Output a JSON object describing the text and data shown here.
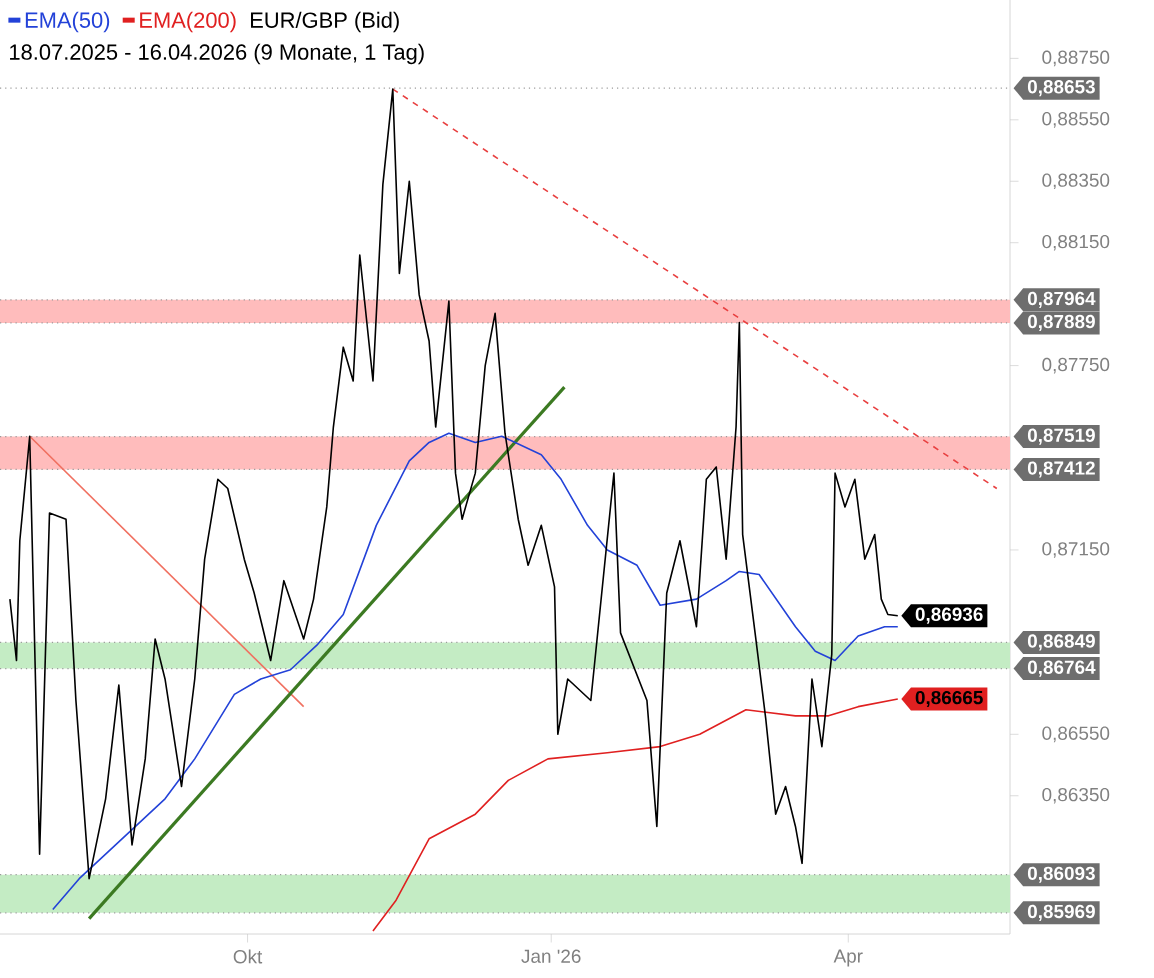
{
  "chart_data": {
    "type": "line",
    "title": "EUR/GBP (Bid)",
    "subtitle": "18.07.2025 - 16.04.2026  (9 Monate, 1 Tag)",
    "legend": "top left",
    "xlim": [
      "2025-07-18",
      "2026-05-20"
    ],
    "ylim": [
      0.859,
      0.8894
    ],
    "xticks": [
      {
        "value": "2025-10-01",
        "label": "Okt"
      },
      {
        "value": "2026-01-01",
        "label": "Jan '26"
      },
      {
        "value": "2026-04-01",
        "label": "Apr"
      }
    ],
    "yticks": [
      {
        "value": 0.8875,
        "label": "0,88750"
      },
      {
        "value": 0.8855,
        "label": "0,88550"
      },
      {
        "value": 0.8835,
        "label": "0,88350"
      },
      {
        "value": 0.8815,
        "label": "0,88150"
      },
      {
        "value": 0.8775,
        "label": "0,87750"
      },
      {
        "value": 0.8715,
        "label": "0,87150"
      },
      {
        "value": 0.8655,
        "label": "0,86550"
      },
      {
        "value": 0.8635,
        "label": "0,86350"
      }
    ],
    "bands": [
      {
        "axis": "y",
        "from": 0.87889,
        "to": 0.87964,
        "color": "#ffbcbc"
      },
      {
        "axis": "y",
        "from": 0.87412,
        "to": 0.87519,
        "color": "#ffbcbc"
      },
      {
        "axis": "y",
        "from": 0.86764,
        "to": 0.86849,
        "color": "#c4ecc4"
      },
      {
        "axis": "y",
        "from": 0.85969,
        "to": 0.86093,
        "color": "#c4ecc4"
      }
    ],
    "ref_lines": [
      {
        "axis": "y",
        "value": 0.88653,
        "label": "0,88653",
        "color": "#9a9a9a",
        "line_style": "dotted"
      },
      {
        "axis": "y",
        "value": 0.87964,
        "label": "0,87964",
        "color": "#9a9a9a",
        "line_style": "dotted"
      },
      {
        "axis": "y",
        "value": 0.87889,
        "label": "0,87889",
        "color": "#9a9a9a",
        "line_style": "dotted"
      },
      {
        "axis": "y",
        "value": 0.87519,
        "label": "0,87519",
        "color": "#9a9a9a",
        "line_style": "dotted"
      },
      {
        "axis": "y",
        "value": 0.87412,
        "label": "0,87412",
        "color": "#9a9a9a",
        "line_style": "dotted"
      },
      {
        "axis": "y",
        "value": 0.86849,
        "label": "0,86849",
        "color": "#9a9a9a",
        "line_style": "dotted"
      },
      {
        "axis": "y",
        "value": 0.86764,
        "label": "0,86764",
        "color": "#9a9a9a",
        "line_style": "dotted"
      },
      {
        "axis": "y",
        "value": 0.86093,
        "label": "0,86093",
        "color": "#9a9a9a",
        "line_style": "dotted"
      },
      {
        "axis": "y",
        "value": 0.85969,
        "label": "0,85969",
        "color": "#9a9a9a",
        "line_style": "dotted"
      }
    ],
    "series": [
      {
        "color": "#e84040",
        "line_style": "dashed",
        "x": [
          "2025-11-14",
          "2026-05-16"
        ],
        "values": [
          0.8865,
          0.8735
        ]
      },
      {
        "color": "#f07060",
        "line_style": "solid",
        "x": [
          "2025-07-27",
          "2025-10-18"
        ],
        "values": [
          0.8752,
          0.8664
        ]
      },
      {
        "color": "#3c7a22",
        "line_style": "solid",
        "x": [
          "2025-08-14",
          "2026-01-05"
        ],
        "values": [
          0.8595,
          0.8768
        ]
      },
      {
        "name": "EMA(50)",
        "color": "#2342d8",
        "line_style": "solid",
        "x": [
          "2025-08-03",
          "2025-08-11",
          "2025-08-19",
          "2025-09-06",
          "2025-09-15",
          "2025-09-27",
          "2025-10-05",
          "2025-10-14",
          "2025-10-22",
          "2025-10-30",
          "2025-11-09",
          "2025-11-19",
          "2025-11-25",
          "2025-12-01",
          "2025-12-09",
          "2025-12-17",
          "2025-12-29",
          "2026-01-04",
          "2026-01-12",
          "2026-01-18",
          "2026-01-27",
          "2026-02-03",
          "2026-02-14",
          "2026-02-23",
          "2026-02-27",
          "2026-03-05",
          "2026-03-16",
          "2026-03-22",
          "2026-03-28",
          "2026-04-04",
          "2026-04-12",
          "2026-04-16"
        ],
        "values": [
          0.8598,
          0.8608,
          0.8616,
          0.8634,
          0.8647,
          0.8668,
          0.8673,
          0.8676,
          0.8684,
          0.8694,
          0.8723,
          0.8744,
          0.875,
          0.8753,
          0.875,
          0.8752,
          0.8746,
          0.8738,
          0.8723,
          0.8715,
          0.871,
          0.8697,
          0.8699,
          0.8705,
          0.8708,
          0.8707,
          0.869,
          0.8682,
          0.8679,
          0.8687,
          0.869,
          0.869
        ]
      },
      {
        "name": "EMA(200)",
        "color": "#e02020",
        "line_style": "solid",
        "x": [
          "2025-11-08",
          "2025-11-15",
          "2025-11-25",
          "2025-12-09",
          "2025-12-19",
          "2025-12-31",
          "2026-01-18",
          "2026-02-03",
          "2026-02-15",
          "2026-03-01",
          "2026-03-16",
          "2026-03-26",
          "2026-04-04",
          "2026-04-16"
        ],
        "values": [
          0.8591,
          0.8601,
          0.8621,
          0.8629,
          0.864,
          0.8647,
          0.8649,
          0.8651,
          0.8655,
          0.8663,
          0.8661,
          0.8661,
          0.8664,
          0.86665
        ],
        "value_labels": [
          null,
          null,
          null,
          null,
          null,
          null,
          null,
          null,
          null,
          null,
          null,
          null,
          null,
          "0,86665"
        ]
      },
      {
        "color": "#000000",
        "line_style": "solid",
        "x": [
          "2025-07-21",
          "2025-07-23",
          "2025-07-24",
          "2025-07-27",
          "2025-07-30",
          "2025-08-02",
          "2025-08-07",
          "2025-08-10",
          "2025-08-14",
          "2025-08-19",
          "2025-08-23",
          "2025-08-27",
          "2025-08-31",
          "2025-09-03",
          "2025-09-06",
          "2025-09-11",
          "2025-09-15",
          "2025-09-18",
          "2025-09-22",
          "2025-09-25",
          "2025-09-30",
          "2025-10-03",
          "2025-10-08",
          "2025-10-12",
          "2025-10-18",
          "2025-10-21",
          "2025-10-25",
          "2025-10-27",
          "2025-10-30",
          "2025-11-02",
          "2025-11-04",
          "2025-11-08",
          "2025-11-11",
          "2025-11-14",
          "2025-11-16",
          "2025-11-19",
          "2025-11-22",
          "2025-11-25",
          "2025-11-27",
          "2025-12-01",
          "2025-12-03",
          "2025-12-05",
          "2025-12-09",
          "2025-12-12",
          "2025-12-15",
          "2025-12-18",
          "2025-12-22",
          "2025-12-25",
          "2025-12-29",
          "2026-01-02",
          "2026-01-03",
          "2026-01-06",
          "2026-01-13",
          "2026-01-20",
          "2026-01-22",
          "2026-01-30",
          "2026-02-02",
          "2026-02-05",
          "2026-02-09",
          "2026-02-14",
          "2026-02-17",
          "2026-02-20",
          "2026-02-23",
          "2026-02-26",
          "2026-02-27",
          "2026-02-28",
          "2026-03-04",
          "2026-03-07",
          "2026-03-10",
          "2026-03-13",
          "2026-03-16",
          "2026-03-18",
          "2026-03-21",
          "2026-03-24",
          "2026-03-27",
          "2026-03-28",
          "2026-03-31",
          "2026-04-03",
          "2026-04-06",
          "2026-04-09",
          "2026-04-11",
          "2026-04-13",
          "2026-04-16"
        ],
        "values": [
          0.8699,
          0.8679,
          0.8718,
          0.8752,
          0.8616,
          0.8727,
          0.8725,
          0.8666,
          0.8608,
          0.8634,
          0.8671,
          0.8619,
          0.8647,
          0.8686,
          0.8673,
          0.8638,
          0.8673,
          0.8712,
          0.8738,
          0.8735,
          0.8712,
          0.8701,
          0.8679,
          0.8705,
          0.8686,
          0.8699,
          0.8729,
          0.8755,
          0.8781,
          0.877,
          0.8811,
          0.877,
          0.8834,
          0.8865,
          0.8805,
          0.8835,
          0.8798,
          0.8783,
          0.8755,
          0.8796,
          0.874,
          0.8725,
          0.874,
          0.8775,
          0.8792,
          0.8753,
          0.8725,
          0.871,
          0.8723,
          0.8703,
          0.8655,
          0.8673,
          0.8666,
          0.874,
          0.8688,
          0.8666,
          0.8625,
          0.8701,
          0.8718,
          0.869,
          0.8738,
          0.8742,
          0.8712,
          0.8755,
          0.8789,
          0.872,
          0.8686,
          0.866,
          0.8629,
          0.8638,
          0.8625,
          0.8613,
          0.8673,
          0.8651,
          0.8681,
          0.874,
          0.8729,
          0.8738,
          0.8712,
          0.872,
          0.8699,
          0.8694,
          0.86936
        ],
        "value_labels": [
          null,
          null,
          null,
          null,
          null,
          null,
          null,
          null,
          null,
          null,
          null,
          null,
          null,
          null,
          null,
          null,
          null,
          null,
          null,
          null,
          null,
          null,
          null,
          null,
          null,
          null,
          null,
          null,
          null,
          null,
          null,
          null,
          null,
          null,
          null,
          null,
          null,
          null,
          null,
          null,
          null,
          null,
          null,
          null,
          null,
          null,
          null,
          null,
          null,
          null,
          null,
          null,
          null,
          null,
          null,
          null,
          null,
          null,
          null,
          null,
          null,
          null,
          null,
          null,
          null,
          null,
          null,
          null,
          null,
          null,
          null,
          null,
          null,
          null,
          null,
          null,
          null,
          null,
          null,
          null,
          null,
          null,
          "0,86936"
        ]
      }
    ]
  }
}
